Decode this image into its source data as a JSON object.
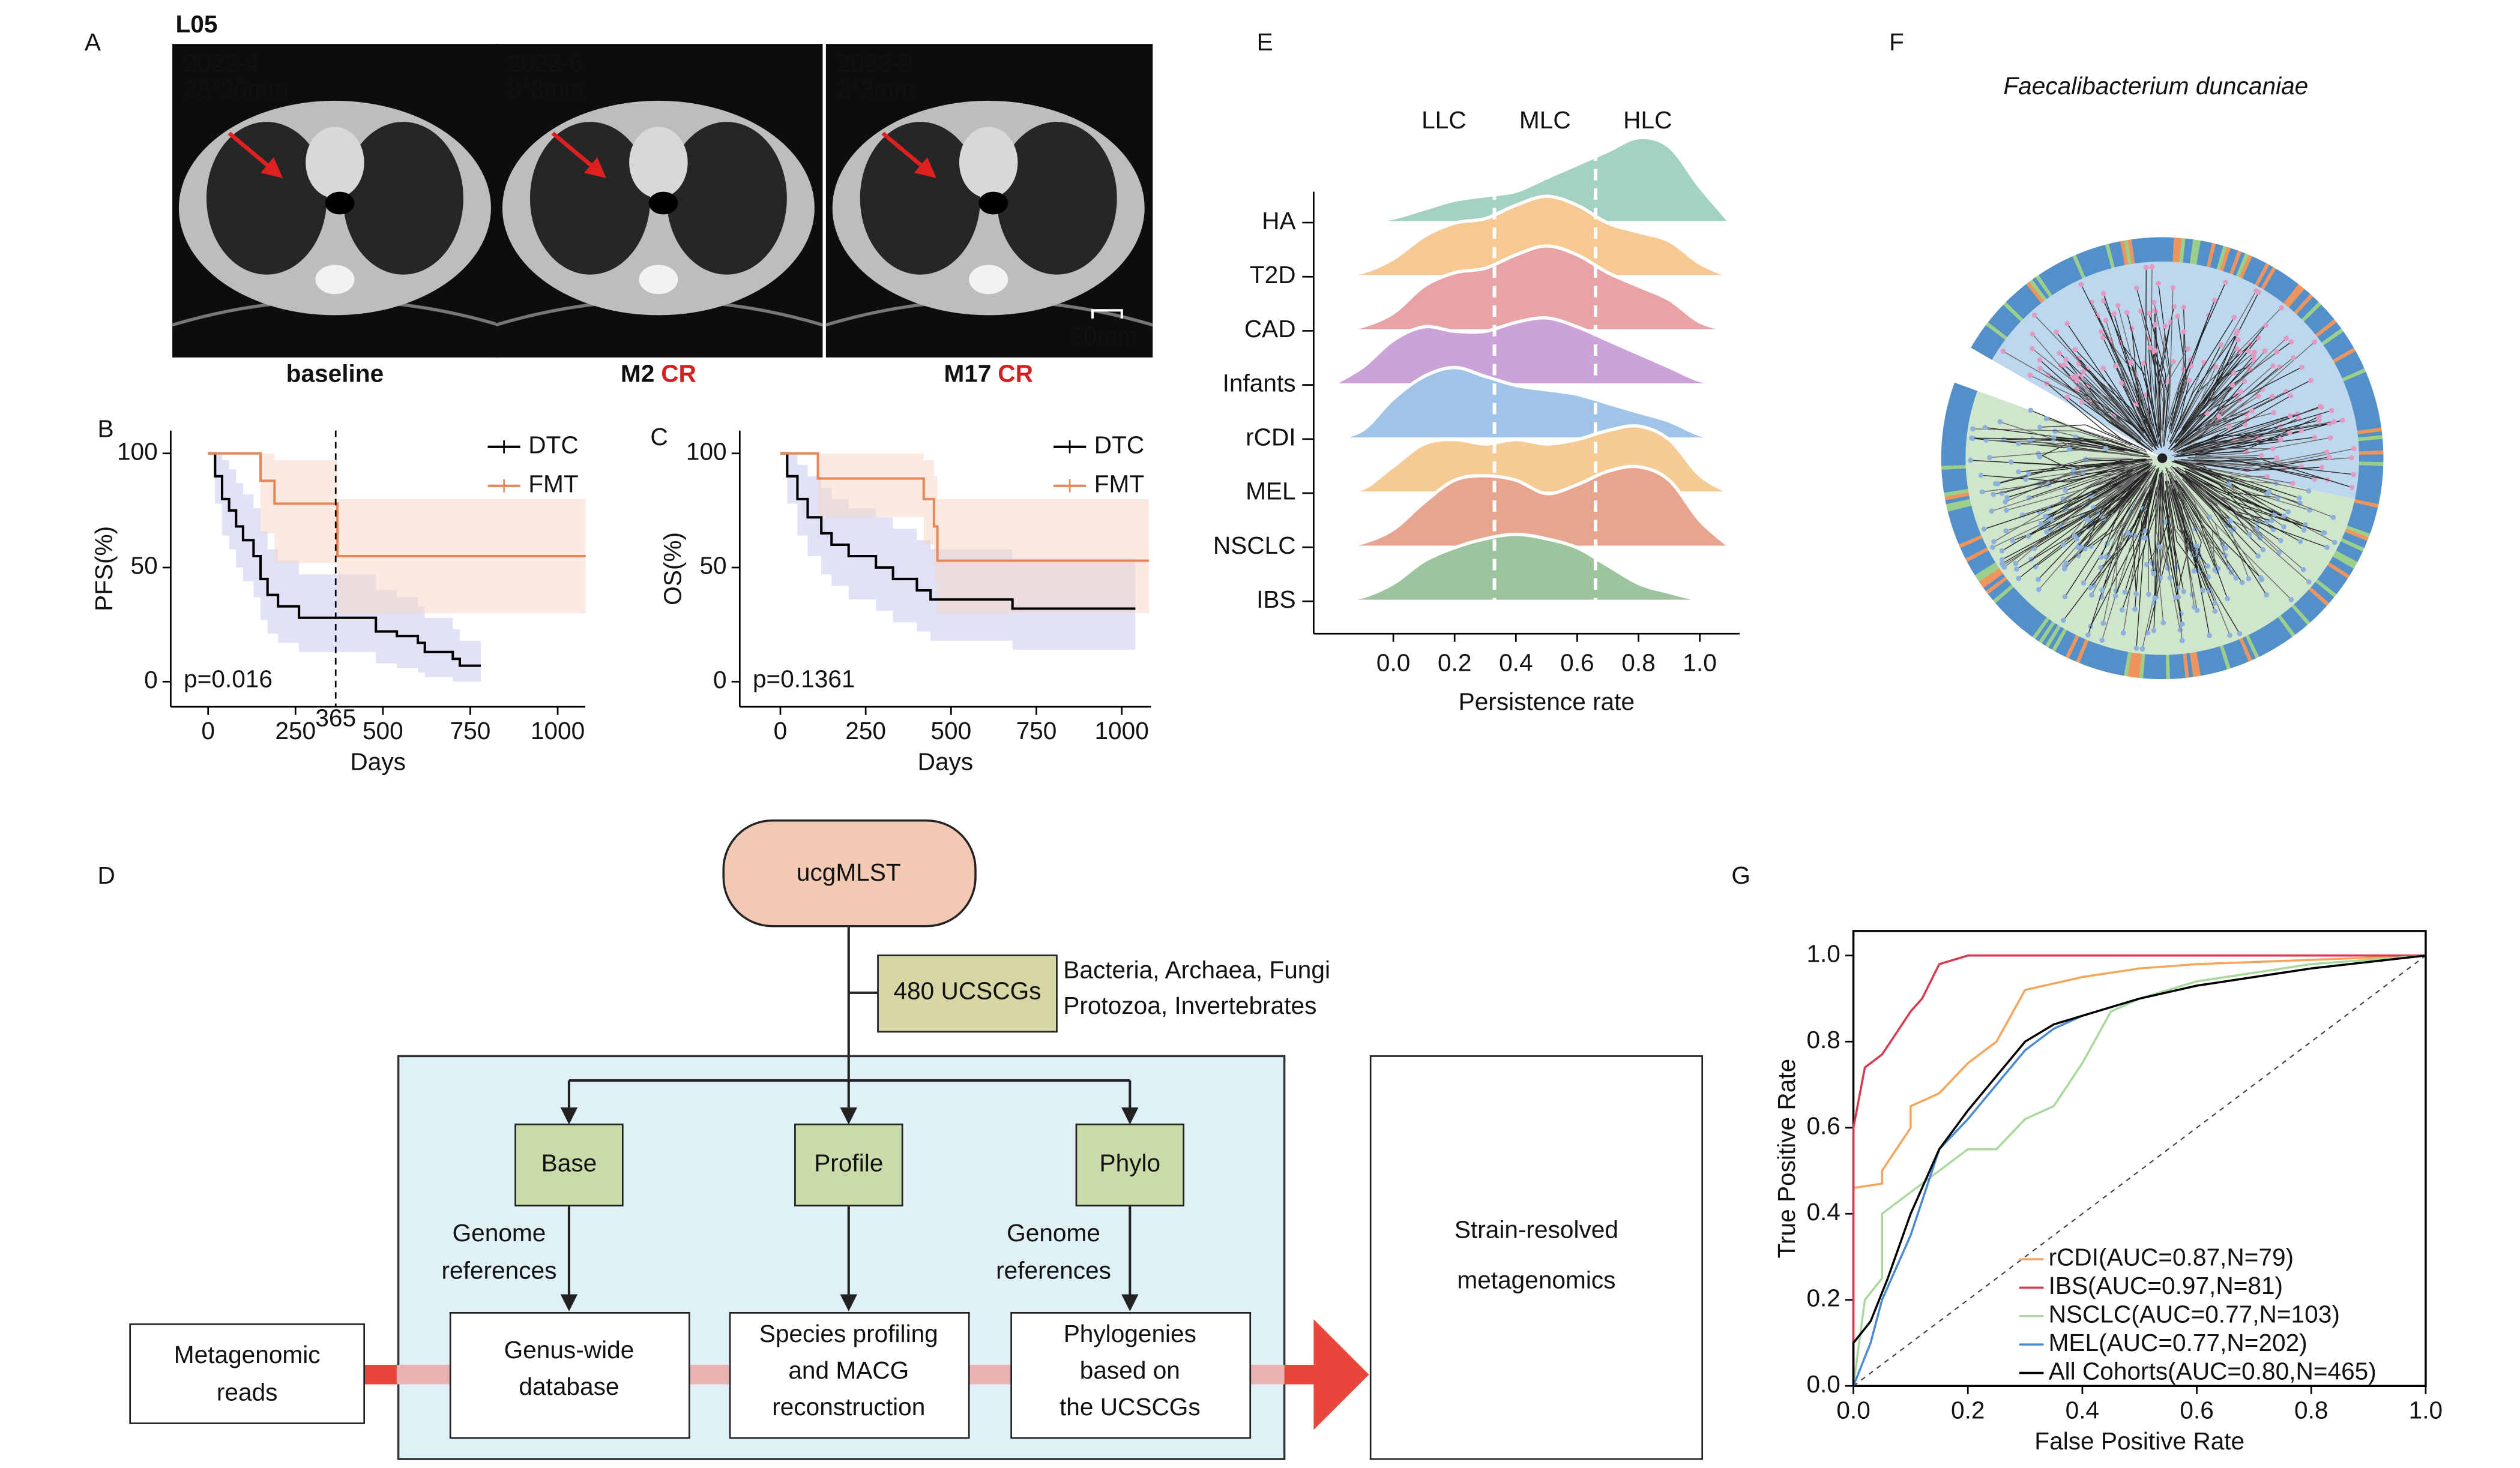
{
  "panel_labels": [
    "A",
    "B",
    "C",
    "D",
    "E",
    "F",
    "G"
  ],
  "panel_a": {
    "patient": "L05",
    "images": [
      {
        "date": "2022-4",
        "size": "28*26mm",
        "caption": "baseline"
      },
      {
        "date": "2022-6",
        "size": "8*8mm",
        "caption": "M2",
        "response": "CR"
      },
      {
        "date": "2023-9",
        "size": "2*3mm",
        "caption": "M17",
        "response": "CR"
      }
    ],
    "scale_bar": "30mm"
  },
  "chart_data": [
    {
      "type": "line",
      "step": true,
      "xlabel": "Days",
      "ylabel": "PFS(%)",
      "annotation": "p=0.016",
      "vline": 365,
      "xlim": [
        -107,
        1079
      ],
      "ylim": [
        -11,
        110
      ],
      "xticks": [
        0,
        250,
        500,
        750,
        1000
      ],
      "yticks": [
        0,
        50,
        100
      ],
      "legend": "upper right",
      "series": [
        {
          "name": "DTC",
          "color": "#000000",
          "band_color": "#c9c9f2",
          "x": [
            0,
            20,
            40,
            60,
            80,
            100,
            130,
            150,
            170,
            200,
            260,
            440,
            480,
            540,
            600,
            620,
            700,
            720,
            780
          ],
          "values": [
            100,
            90,
            80,
            75,
            68,
            62,
            55,
            45,
            38,
            33,
            28,
            28,
            22,
            20,
            17,
            13,
            10,
            7,
            7
          ],
          "ci_upper": [
            100,
            100,
            97,
            93,
            87,
            82,
            76,
            66,
            58,
            53,
            47,
            47,
            40,
            37,
            33,
            28,
            23,
            18,
            18
          ],
          "ci_lower": [
            100,
            78,
            64,
            58,
            50,
            44,
            37,
            27,
            21,
            17,
            13,
            13,
            8,
            6,
            4,
            2,
            0,
            0,
            0
          ]
        },
        {
          "name": "FMT",
          "color": "#e8875a",
          "band_color": "#f6d8c8",
          "x": [
            0,
            140,
            150,
            190,
            370,
            1080
          ],
          "values": [
            100,
            100,
            88,
            78,
            55,
            55
          ],
          "ci_upper": [
            100,
            100,
            100,
            97,
            80,
            80
          ],
          "ci_lower": [
            100,
            100,
            65,
            52,
            30,
            20
          ]
        }
      ]
    },
    {
      "type": "line",
      "step": true,
      "xlabel": "Days",
      "ylabel": "OS(%)",
      "annotation": "p=0.1361",
      "xlim": [
        -119,
        1086
      ],
      "ylim": [
        -11,
        110
      ],
      "xticks": [
        0,
        250,
        500,
        750,
        1000
      ],
      "yticks": [
        0,
        50,
        100
      ],
      "legend": "upper right",
      "series": [
        {
          "name": "DTC",
          "color": "#000000",
          "band_color": "#c9c9f2",
          "x": [
            0,
            20,
            50,
            80,
            120,
            150,
            200,
            280,
            330,
            400,
            440,
            660,
            680,
            1040
          ],
          "values": [
            100,
            90,
            80,
            72,
            65,
            60,
            55,
            50,
            45,
            40,
            36,
            36,
            32,
            32
          ],
          "ci_upper": [
            100,
            100,
            95,
            90,
            85,
            80,
            76,
            72,
            67,
            62,
            58,
            58,
            54,
            54
          ],
          "ci_lower": [
            100,
            78,
            64,
            55,
            47,
            42,
            36,
            31,
            26,
            22,
            18,
            18,
            14,
            14
          ]
        },
        {
          "name": "FMT",
          "color": "#e8875a",
          "band_color": "#f6d8c8",
          "x": [
            0,
            100,
            110,
            400,
            420,
            450,
            460,
            1080
          ],
          "values": [
            100,
            100,
            89,
            89,
            80,
            68,
            53,
            53
          ],
          "ci_upper": [
            100,
            100,
            100,
            100,
            97,
            90,
            80,
            80
          ],
          "ci_lower": [
            100,
            100,
            72,
            72,
            60,
            45,
            30,
            20
          ]
        }
      ]
    },
    {
      "type": "density",
      "xlabel": "Persistence rate",
      "x": [
        -0.2,
        -0.1,
        0,
        0.1,
        0.2,
        0.3,
        0.4,
        0.5,
        0.6,
        0.7,
        0.8,
        0.9,
        1.0,
        1.1
      ],
      "xlim": [
        -0.26,
        1.13
      ],
      "xticks": [
        {
          "value": 0,
          "label": "0.0"
        },
        0.2,
        0.4,
        0.6,
        0.8,
        {
          "value": 1,
          "label": "1.0"
        }
      ],
      "thresholds": [
        0.33,
        0.66
      ],
      "regions": [
        "LLC",
        "MLC",
        "HLC"
      ],
      "series": [
        {
          "name": "HA",
          "color": "#a3d1c3",
          "values": [
            0,
            0,
            0.05,
            0.15,
            0.25,
            0.3,
            0.35,
            0.5,
            0.65,
            0.8,
            0.95,
            0.85,
            0.4,
            0
          ]
        },
        {
          "name": "T2D",
          "color": "#f6c993",
          "values": [
            0,
            0.05,
            0.2,
            0.45,
            0.6,
            0.65,
            0.8,
            0.9,
            0.8,
            0.6,
            0.5,
            0.4,
            0.15,
            0
          ]
        },
        {
          "name": "CAD",
          "color": "#e7a3a6",
          "values": [
            0,
            0.05,
            0.2,
            0.5,
            0.65,
            0.7,
            0.85,
            0.95,
            0.85,
            0.65,
            0.5,
            0.35,
            0.1,
            0
          ]
        },
        {
          "name": "Infants",
          "color": "#cba3d8",
          "values": [
            0,
            0.2,
            0.5,
            0.65,
            0.6,
            0.6,
            0.7,
            0.75,
            0.65,
            0.5,
            0.35,
            0.2,
            0.05,
            0
          ]
        },
        {
          "name": "rCDI",
          "color": "#a0c4e7",
          "values": [
            0,
            0.1,
            0.45,
            0.7,
            0.8,
            0.7,
            0.6,
            0.55,
            0.5,
            0.4,
            0.3,
            0.2,
            0.05,
            0
          ]
        },
        {
          "name": "MEL",
          "color": "#f6ca94",
          "values": [
            0,
            0.05,
            0.3,
            0.55,
            0.6,
            0.55,
            0.6,
            0.55,
            0.6,
            0.7,
            0.75,
            0.6,
            0.2,
            0
          ]
        },
        {
          "name": "NSCLC",
          "color": "#e8a58e",
          "values": [
            0,
            0.05,
            0.2,
            0.5,
            0.75,
            0.8,
            0.75,
            0.6,
            0.7,
            0.85,
            0.9,
            0.75,
            0.3,
            0
          ]
        },
        {
          "name": "IBS",
          "color": "#9cc59d",
          "values": [
            0,
            0.05,
            0.2,
            0.45,
            0.6,
            0.7,
            0.75,
            0.7,
            0.6,
            0.4,
            0.2,
            0.1,
            0.02,
            0
          ]
        }
      ]
    },
    {
      "type": "line",
      "xlabel": "False Positive Rate",
      "ylabel": "True Positive Rate",
      "diagonal": true,
      "legend": "lower right",
      "xlim": [
        0,
        1
      ],
      "ylim": [
        0,
        1.057
      ],
      "xticks": [
        {
          "value": 0,
          "label": "0.0"
        },
        0.2,
        0.4,
        0.6,
        0.8,
        {
          "value": 1,
          "label": "1.0"
        }
      ],
      "yticks": [
        {
          "value": 0,
          "label": "0.0"
        },
        0.2,
        0.4,
        0.6,
        0.8,
        {
          "value": 1,
          "label": "1.0"
        }
      ],
      "series": [
        {
          "name": "rCDI(AUC=0.87,N=79)",
          "color": "#f5a55a",
          "x": [
            0,
            0,
            0.05,
            0.05,
            0.1,
            0.1,
            0.15,
            0.2,
            0.25,
            0.3,
            0.4,
            0.5,
            0.6,
            0.8,
            1
          ],
          "values": [
            0,
            0.46,
            0.47,
            0.5,
            0.6,
            0.65,
            0.68,
            0.75,
            0.8,
            0.92,
            0.95,
            0.97,
            0.98,
            0.99,
            1
          ]
        },
        {
          "name": "IBS(AUC=0.97,N=81)",
          "color": "#d63a4e",
          "x": [
            0,
            0,
            0.02,
            0.05,
            0.1,
            0.12,
            0.15,
            0.2,
            0.3,
            0.5,
            0.8,
            1
          ],
          "values": [
            0,
            0.6,
            0.74,
            0.77,
            0.87,
            0.9,
            0.98,
            1,
            1,
            1,
            1,
            1
          ]
        },
        {
          "name": "NSCLC(AUC=0.77,N=103)",
          "color": "#a8d89a",
          "x": [
            0,
            0.02,
            0.05,
            0.05,
            0.1,
            0.15,
            0.2,
            0.25,
            0.3,
            0.35,
            0.4,
            0.45,
            0.5,
            0.6,
            0.8,
            1
          ],
          "values": [
            0,
            0.2,
            0.25,
            0.4,
            0.45,
            0.5,
            0.55,
            0.55,
            0.62,
            0.65,
            0.75,
            0.87,
            0.9,
            0.94,
            0.98,
            1
          ]
        },
        {
          "name": "MEL(AUC=0.77,N=202)",
          "color": "#4a8ad0",
          "x": [
            0,
            0.03,
            0.05,
            0.1,
            0.15,
            0.2,
            0.25,
            0.3,
            0.35,
            0.4,
            0.5,
            0.6,
            0.8,
            1
          ],
          "values": [
            0,
            0.1,
            0.2,
            0.35,
            0.55,
            0.62,
            0.7,
            0.78,
            0.83,
            0.86,
            0.9,
            0.93,
            0.97,
            1
          ]
        },
        {
          "name": "All Cohorts(AUC=0.80,N=465)",
          "color": "#000000",
          "x": [
            0,
            0,
            0.03,
            0.06,
            0.1,
            0.15,
            0.2,
            0.25,
            0.3,
            0.35,
            0.4,
            0.5,
            0.6,
            0.8,
            1
          ],
          "values": [
            0,
            0.1,
            0.15,
            0.25,
            0.4,
            0.55,
            0.64,
            0.72,
            0.8,
            0.84,
            0.86,
            0.9,
            0.93,
            0.97,
            1
          ]
        }
      ]
    }
  ],
  "panel_f": {
    "title": "Faecalibacterium duncaniae"
  },
  "diagram": {
    "root": "ucgMLST",
    "ucscg_box": "480 UCSCGs",
    "ucscg_note": [
      "Bacteria, Archaea, Fungi",
      "Protozoa, Invertebrates"
    ],
    "modules": [
      "Base",
      "Profile",
      "Phylo"
    ],
    "edge_labels": [
      [
        "Genome",
        "references"
      ],
      [
        "Genome",
        "references"
      ]
    ],
    "outputs": [
      [
        "Genus-wide",
        "database"
      ],
      [
        "Species profiling",
        "and MACG",
        "reconstruction"
      ],
      [
        "Phylogenies",
        "based on",
        "the UCSCGs"
      ]
    ],
    "input": [
      "Metagenomic",
      "reads"
    ],
    "result": [
      "Strain-resolved",
      "metagenomics"
    ]
  }
}
